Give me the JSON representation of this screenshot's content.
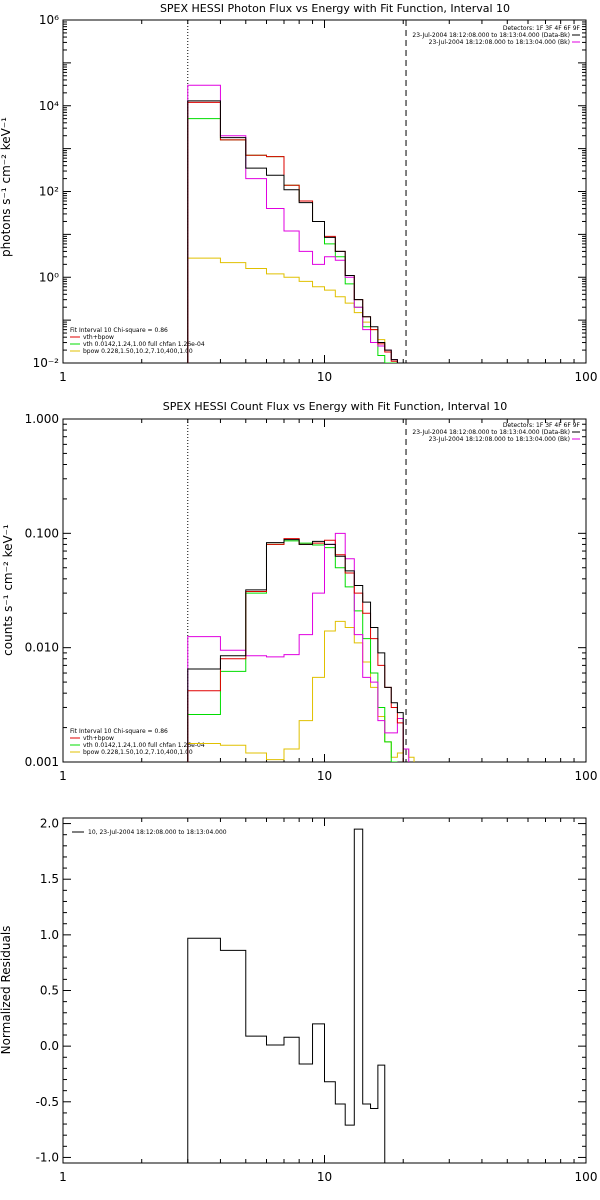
{
  "colors": {
    "data": "#000000",
    "fit_total": "#e00000",
    "vth": "#00dd00",
    "bpow": "#e0c000",
    "background": "#e000e0",
    "axes": "#000000"
  },
  "chart_data": [
    {
      "type": "line",
      "title": "SPEX HESSI Photon Flux vs Energy with Fit Function, Interval 10",
      "ylabel": "photons s⁻¹ cm⁻² keV⁻¹",
      "xlabel": "",
      "xscale": "log",
      "yscale": "log",
      "xlim": [
        1,
        100
      ],
      "ylim": [
        0.01,
        1000000
      ],
      "xticks": [
        1,
        10,
        100
      ],
      "xtick_labels": [
        "1",
        "10",
        "100"
      ],
      "yticks": [
        0.01,
        1,
        100,
        10000,
        1000000
      ],
      "ytick_labels": [
        "10⁻²",
        "10⁰",
        "10²",
        "10⁴",
        "10⁶"
      ],
      "vlines": [
        {
          "x": 3,
          "style": "dotted"
        },
        {
          "x": 20.5,
          "style": "dashed"
        }
      ],
      "header": [
        "Detectors: 1F 3F 4F 6F 9F",
        "23-Jul-2004 18:12:08.000 to 18:13:04.000 (Data-Bk)",
        "23-Jul-2004 18:12:08.000 to 18:13:04.000 (Bk)"
      ],
      "legend": [
        "Fit Interval 10   Chi-square = 0.86",
        "vth+bpow",
        "vth 0.0142,1.24,1.00  full chfan 1.26e-04",
        "bpow 0.228,1.50,10.2,7.10,400,1.00"
      ],
      "edges": [
        3,
        4,
        5,
        6,
        7,
        8,
        9,
        10,
        11,
        12,
        13,
        14,
        15,
        16,
        17,
        18,
        19,
        20,
        21
      ],
      "series": [
        {
          "role": "data",
          "values": [
            13000,
            1800,
            350,
            240,
            110,
            55,
            20,
            8.5,
            4,
            1.1,
            0.3,
            0.12,
            0.07,
            0.03,
            0.02,
            0.012,
            0.01,
            0.01
          ]
        },
        {
          "role": "fit_total",
          "values": [
            12000,
            1600,
            700,
            650,
            140,
            60,
            20,
            9,
            4,
            1.1,
            0.3,
            0.12,
            0.06,
            0.028,
            0.018,
            0.011,
            0.009,
            0.009
          ]
        },
        {
          "role": "vth",
          "values": [
            5000,
            1600,
            700,
            650,
            140,
            60,
            20,
            6,
            3,
            0.7,
            0.2,
            0.07,
            0.03,
            0.015,
            0.01,
            0.008
          ]
        },
        {
          "role": "bpow",
          "values": [
            2.8,
            2.2,
            1.6,
            1.2,
            1.0,
            0.8,
            0.6,
            0.5,
            0.35,
            0.25,
            0.15,
            0.09,
            0.06,
            0.035,
            0.02,
            0.012
          ]
        },
        {
          "role": "background",
          "values": [
            30000,
            2000,
            200,
            40,
            12,
            4,
            2,
            3,
            2.5,
            1,
            0.2,
            0.06,
            0.03,
            0.025,
            0.02,
            0.012,
            0.01,
            0.01
          ]
        }
      ]
    },
    {
      "type": "line",
      "title": "SPEX HESSI Count Flux vs Energy with Fit Function, Interval 10",
      "ylabel": "counts s⁻¹ cm⁻² keV⁻¹",
      "xlabel": "",
      "xscale": "log",
      "yscale": "log",
      "xlim": [
        1,
        100
      ],
      "ylim": [
        0.001,
        1
      ],
      "xticks": [
        1,
        10,
        100
      ],
      "xtick_labels": [
        "1",
        "10",
        "100"
      ],
      "yticks": [
        0.001,
        0.01,
        0.1,
        1
      ],
      "ytick_labels": [
        "0.001",
        "0.010",
        "0.100",
        "1.000"
      ],
      "vlines": [
        {
          "x": 3,
          "style": "dotted"
        },
        {
          "x": 20.5,
          "style": "dashed"
        }
      ],
      "header": [
        "Detectors: 1F 3F 4F 6F 9F",
        "23-Jul-2004 18:12:08.000 to 18:13:04.000 (Data-Bk)",
        "23-Jul-2004 18:12:08.000 to 18:13:04.000 (Bk)"
      ],
      "legend": [
        "Fit Interval 10   Chi-square = 0.86",
        "vth+bpow",
        "vth 0.0142,1.24,1.00  full chfan 1.26e-04",
        "bpow 0.228,1.50,10.2,7.10,400,1.00"
      ],
      "edges": [
        3,
        4,
        5,
        6,
        7,
        8,
        9,
        10,
        11,
        12,
        13,
        14,
        15,
        16,
        17,
        18,
        19,
        20,
        21,
        22
      ],
      "series": [
        {
          "role": "data",
          "values": [
            0.0065,
            0.0085,
            0.032,
            0.083,
            0.088,
            0.08,
            0.085,
            0.08,
            0.063,
            0.047,
            0.035,
            0.025,
            0.015,
            0.009,
            0.0045,
            0.0033,
            0.0027
          ]
        },
        {
          "role": "fit_total",
          "values": [
            0.0042,
            0.008,
            0.031,
            0.08,
            0.09,
            0.08,
            0.082,
            0.087,
            0.065,
            0.045,
            0.03,
            0.02,
            0.012,
            0.007,
            0.0045,
            0.003,
            0.0022
          ]
        },
        {
          "role": "vth",
          "values": [
            0.0026,
            0.0062,
            0.03,
            0.08,
            0.086,
            0.082,
            0.079,
            0.075,
            0.05,
            0.034,
            0.021,
            0.012,
            0.006,
            0.003,
            0.0015,
            0.001
          ]
        },
        {
          "role": "bpow",
          "values": [
            0.00145,
            0.0014,
            0.0012,
            0.00105,
            0.0013,
            0.0023,
            0.0055,
            0.014,
            0.017,
            0.015,
            0.011,
            0.0075,
            0.0045,
            0.0025,
            0.0015,
            0.0011,
            0.0012,
            0.0013,
            0.0011
          ]
        },
        {
          "role": "background",
          "values": [
            0.0125,
            0.0095,
            0.0085,
            0.0083,
            0.0087,
            0.013,
            0.03,
            0.08,
            0.1,
            0.06,
            0.013,
            0.0055,
            0.005,
            0.0023,
            0.0018,
            0.0018,
            0.0024,
            0.0013
          ]
        }
      ]
    },
    {
      "type": "line",
      "title": "",
      "ylabel": "Normalized Residuals",
      "xlabel": "",
      "xscale": "log",
      "yscale": "linear",
      "xlim": [
        1,
        100
      ],
      "ylim": [
        -1.05,
        2.05
      ],
      "xticks": [
        1,
        10,
        100
      ],
      "xtick_labels": [
        "1",
        "10",
        "100"
      ],
      "yticks": [
        -1,
        -0.5,
        0,
        0.5,
        1,
        1.5,
        2
      ],
      "ytick_labels": [
        "-1.0",
        "-0.5",
        "0.0",
        "0.5",
        "1.0",
        "1.5",
        "2.0"
      ],
      "legend": [
        "10, 23-Jul-2004 18:12:08.000 to 18:13:04.000"
      ],
      "edges": [
        3,
        4,
        5,
        6,
        7,
        8,
        9,
        10,
        11,
        12,
        13,
        14,
        15,
        16,
        17,
        18,
        19,
        20
      ],
      "series": [
        {
          "role": "data",
          "values": [
            0.97,
            0.86,
            0.09,
            0.01,
            0.08,
            -0.16,
            0.2,
            -0.32,
            -0.52,
            -0.71,
            1.95,
            -0.52,
            -0.56,
            -0.17
          ]
        }
      ]
    }
  ]
}
